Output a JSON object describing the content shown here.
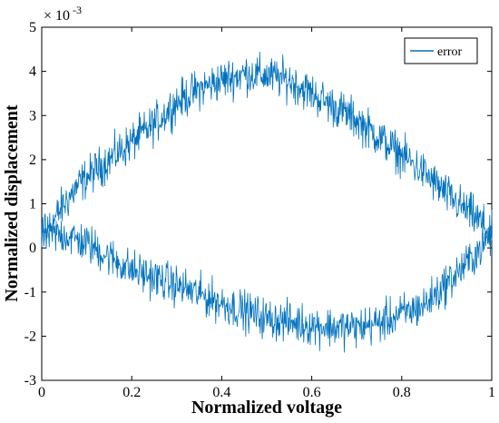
{
  "chart_data": {
    "type": "line",
    "title": "",
    "xlabel": "Normalized voltage",
    "ylabel": "Normalized displacement",
    "y_exponent_label": "× 10",
    "y_exponent_power": "-3",
    "xlim": [
      0,
      1
    ],
    "ylim": [
      -3,
      5
    ],
    "x_ticks": [
      "0",
      "0.2",
      "0.4",
      "0.6",
      "0.8",
      "1"
    ],
    "x_tick_values": [
      0,
      0.2,
      0.4,
      0.6,
      0.8,
      1
    ],
    "y_ticks": [
      "-3",
      "-2",
      "-1",
      "0",
      "1",
      "2",
      "3",
      "4",
      "5"
    ],
    "y_tick_values": [
      -3,
      -2,
      -1,
      0,
      1,
      2,
      3,
      4,
      5
    ],
    "grid": false,
    "legend_position": "top-right",
    "series": [
      {
        "name": "error",
        "color": "#0072BD",
        "branches": [
          {
            "label": "upper",
            "x": [
              0.0,
              0.02,
              0.05,
              0.08,
              0.1,
              0.15,
              0.2,
              0.25,
              0.3,
              0.35,
              0.4,
              0.45,
              0.5,
              0.55,
              0.6,
              0.65,
              0.7,
              0.75,
              0.8,
              0.85,
              0.9,
              0.95,
              0.98,
              1.0
            ],
            "y": [
              0.2,
              0.5,
              1.0,
              1.4,
              1.6,
              2.0,
              2.4,
              2.8,
              3.3,
              3.6,
              3.8,
              3.95,
              3.9,
              3.8,
              3.5,
              3.2,
              2.9,
              2.5,
              2.1,
              1.7,
              1.2,
              0.8,
              0.55,
              0.3
            ],
            "noise_amplitude": 0.45
          },
          {
            "label": "lower",
            "x": [
              0.0,
              0.05,
              0.1,
              0.15,
              0.2,
              0.3,
              0.4,
              0.5,
              0.6,
              0.65,
              0.7,
              0.75,
              0.8,
              0.85,
              0.9,
              0.95,
              1.0
            ],
            "y": [
              0.3,
              0.3,
              0.1,
              -0.2,
              -0.5,
              -0.85,
              -1.25,
              -1.6,
              -1.75,
              -1.8,
              -1.8,
              -1.7,
              -1.5,
              -1.3,
              -0.8,
              -0.3,
              0.3
            ],
            "noise_amplitude": 0.45
          }
        ]
      }
    ]
  }
}
